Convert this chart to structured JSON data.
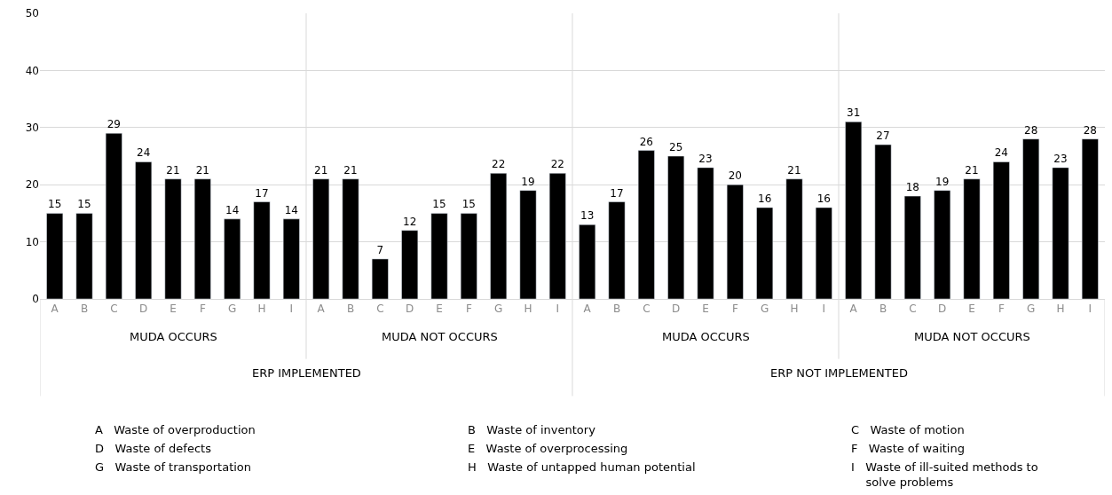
{
  "chart_data": {
    "type": "bar",
    "categories": [
      "A",
      "B",
      "C",
      "D",
      "E",
      "F",
      "G",
      "H",
      "I",
      "A",
      "B",
      "C",
      "D",
      "E",
      "F",
      "G",
      "H",
      "I",
      "A",
      "B",
      "C",
      "D",
      "E",
      "F",
      "G",
      "H",
      "I",
      "A",
      "B",
      "C",
      "D",
      "E",
      "F",
      "G",
      "H",
      "I"
    ],
    "values": [
      15,
      15,
      29,
      24,
      21,
      21,
      14,
      17,
      14,
      21,
      21,
      7,
      12,
      15,
      15,
      22,
      19,
      22,
      13,
      17,
      26,
      25,
      23,
      20,
      16,
      21,
      16,
      31,
      27,
      18,
      19,
      21,
      24,
      28,
      23,
      28
    ],
    "color": "#000000",
    "ylim": [
      0,
      50
    ],
    "yticks": [
      0,
      10,
      20,
      30,
      40,
      50
    ],
    "grid": "y",
    "data_labels": true,
    "annotations": [
      "MUDA OCCURS",
      "MUDA NOT OCCURS",
      "MUDA OCCURS",
      "MUDA NOT OCCURS",
      "ERP IMPLEMENTED",
      "ERP NOT IMPLEMENTED",
      "A   Waste of overproduction",
      "B   Waste of inventory",
      "C   Waste of motion",
      "D   Waste of defects",
      "E   Waste of overprocessing",
      "F   Waste of waiting",
      "G   Waste of transportation",
      "H   Waste of untapped human potential",
      "I   Waste of ill-suited methods to solve problems"
    ]
  }
}
